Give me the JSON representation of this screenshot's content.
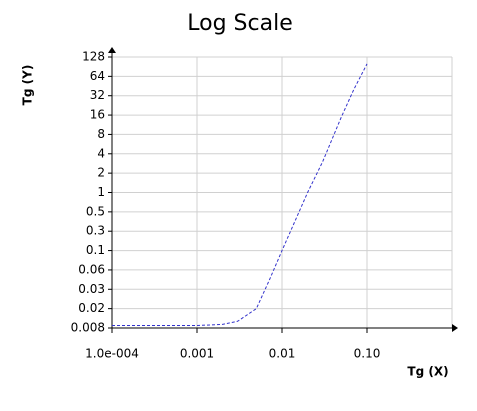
{
  "chart_data": {
    "type": "line",
    "title": "Log Scale",
    "x_label": "Tg (X)",
    "y_label": "Tg (Y)",
    "x_scale": "log",
    "grid": true,
    "xlim": [
      0.0001,
      1
    ],
    "xticks": [
      {
        "value": 0.0001,
        "label": "1.0e-004"
      },
      0.001,
      0.01,
      {
        "value": 0.1,
        "label": "0.10"
      }
    ],
    "ylim": [
      0.008,
      128
    ],
    "yticks": [
      0.008,
      0.02,
      0.03,
      0.06,
      0.1,
      0.3,
      0.5,
      1,
      2,
      4,
      8,
      16,
      32,
      64,
      128
    ],
    "series": [
      {
        "color": "#3333cc",
        "x": [
          0.0001,
          0.0003,
          0.001,
          0.002,
          0.003,
          0.005,
          0.007,
          0.01,
          0.02,
          0.03,
          0.05,
          0.07,
          0.1
        ],
        "values": [
          0.009,
          0.009,
          0.009,
          0.0095,
          0.011,
          0.02,
          0.04,
          0.1,
          1,
          3,
          15,
          40,
          100
        ]
      }
    ]
  }
}
